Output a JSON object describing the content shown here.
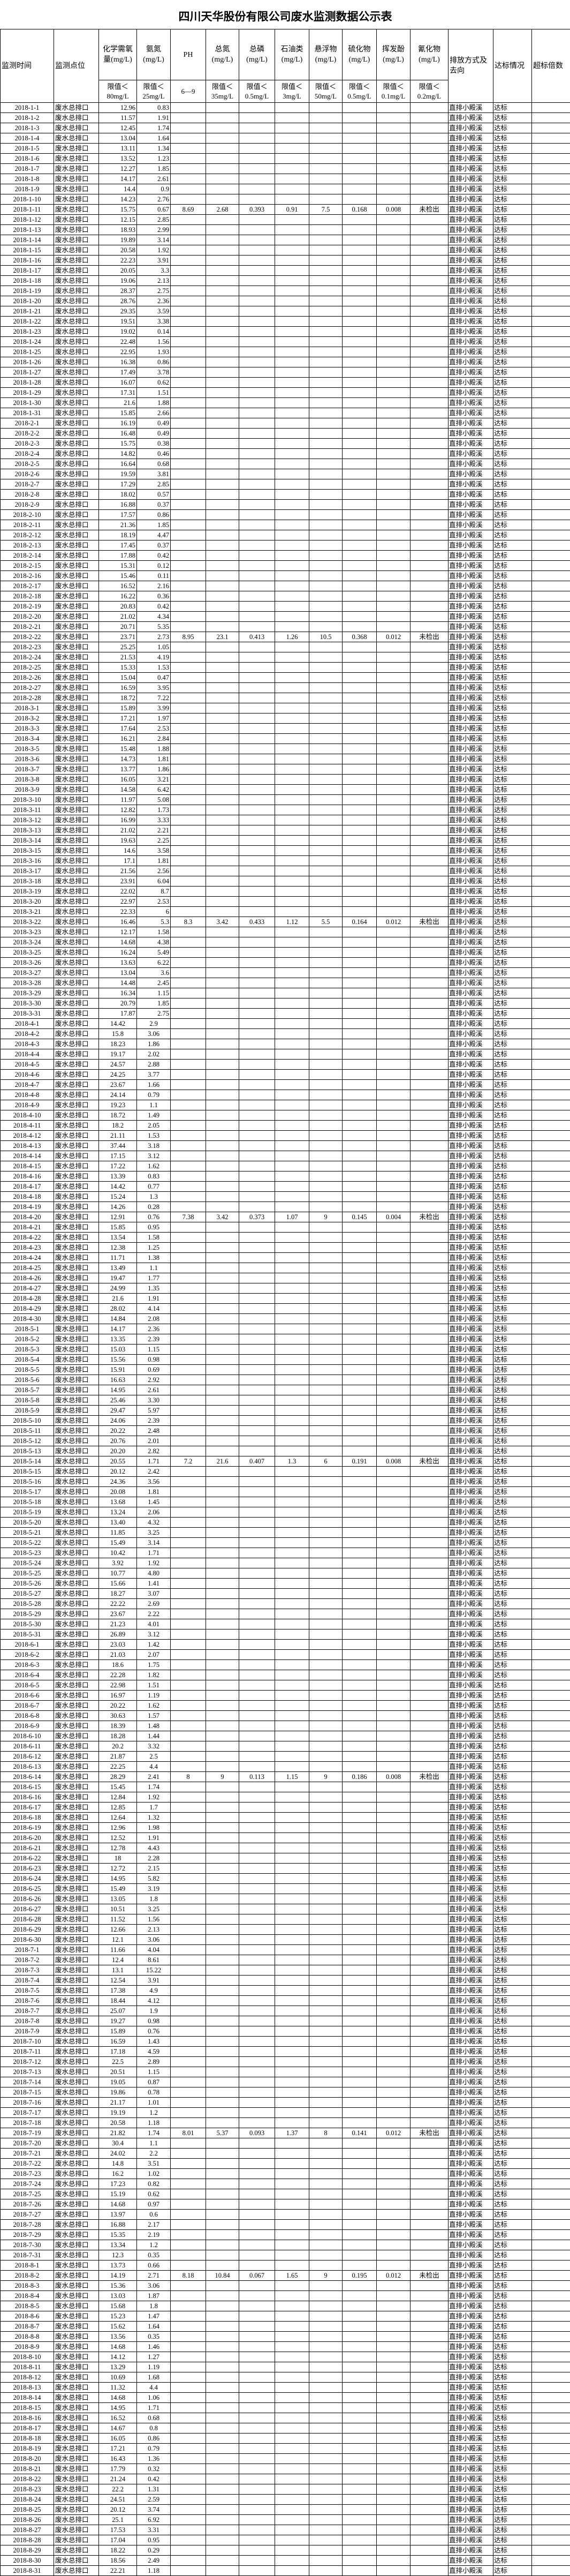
{
  "title": "四川天华股份有限公司废水监测数据公示表",
  "headers": {
    "time": "监测时间",
    "point": "监测点位",
    "cod": "化学需氧量(mg/L)",
    "nh3n": "氨氮(mg/L)",
    "ph": "PH",
    "tn": "总氮(mg/L)",
    "tp": "总磷(mg/L)",
    "oil": "石油类(mg/L)",
    "ss": "悬浮物(mg/L)",
    "sulfide": "硫化物(mg/L)",
    "phenol": "挥发酚(mg/L)",
    "cyanide": "氰化物(mg/L)",
    "discharge": "排放方式及去向",
    "status": "达标情况",
    "exceed": "超标倍数"
  },
  "limits": {
    "cod": "限值＜80mg/L",
    "nh3n": "限值＜25mg/L",
    "ph": "6—9",
    "tn": "限值＜35mg/L",
    "tp": "限值＜0.5mg/L",
    "oil": "限值＜3mg/L",
    "ss": "限值＜50mg/L",
    "sulfide": "限值＜0.5mg/L",
    "phenol": "限值＜0.1mg/L",
    "cyanide": "限值＜0.2mg/L"
  },
  "defaults": {
    "point": "废水总排口",
    "discharge": "直排小殿溪",
    "status": "达标"
  },
  "rows": [
    [
      "2018-1-1",
      "12.96",
      "0.83"
    ],
    [
      "2018-1-2",
      "11.57",
      "1.91"
    ],
    [
      "2018-1-3",
      "12.45",
      "1.74"
    ],
    [
      "2018-1-4",
      "13.04",
      "1.64"
    ],
    [
      "2018-1-5",
      "13.11",
      "1.34"
    ],
    [
      "2018-1-6",
      "13.52",
      "1.23"
    ],
    [
      "2018-1-7",
      "12.27",
      "1.85"
    ],
    [
      "2018-1-8",
      "14.17",
      "2.61"
    ],
    [
      "2018-1-9",
      "14.4",
      "0.9"
    ],
    [
      "2018-1-10",
      "14.23",
      "2.76"
    ],
    [
      "2018-1-11",
      "15.75",
      "0.67",
      "8.69",
      "2.68",
      "0.393",
      "0.91",
      "7.5",
      "0.168",
      "0.008",
      "未检出"
    ],
    [
      "2018-1-12",
      "12.15",
      "2.85"
    ],
    [
      "2018-1-13",
      "18.93",
      "2.99"
    ],
    [
      "2018-1-14",
      "19.89",
      "3.14"
    ],
    [
      "2018-1-15",
      "20.58",
      "1.92"
    ],
    [
      "2018-1-16",
      "22.23",
      "3.91"
    ],
    [
      "2018-1-17",
      "20.05",
      "3.3"
    ],
    [
      "2018-1-18",
      "19.06",
      "2.13"
    ],
    [
      "2018-1-19",
      "28.37",
      "2.75"
    ],
    [
      "2018-1-20",
      "28.76",
      "2.36"
    ],
    [
      "2018-1-21",
      "29.35",
      "3.59"
    ],
    [
      "2018-1-22",
      "19.51",
      "3.38"
    ],
    [
      "2018-1-23",
      "19.02",
      "0.14"
    ],
    [
      "2018-1-24",
      "22.48",
      "1.56"
    ],
    [
      "2018-1-25",
      "22.95",
      "1.93"
    ],
    [
      "2018-1-26",
      "16.38",
      "0.86"
    ],
    [
      "2018-1-27",
      "17.49",
      "3.78"
    ],
    [
      "2018-1-28",
      "16.07",
      "0.62"
    ],
    [
      "2018-1-29",
      "17.31",
      "1.51"
    ],
    [
      "2018-1-30",
      "21.6",
      "1.88"
    ],
    [
      "2018-1-31",
      "15.85",
      "2.66"
    ],
    [
      "2018-2-1",
      "16.19",
      "0.49"
    ],
    [
      "2018-2-2",
      "16.48",
      "0.49"
    ],
    [
      "2018-2-3",
      "15.75",
      "0.38"
    ],
    [
      "2018-2-4",
      "14.82",
      "0.46"
    ],
    [
      "2018-2-5",
      "16.64",
      "0.68"
    ],
    [
      "2018-2-6",
      "19.59",
      "3.81"
    ],
    [
      "2018-2-7",
      "17.29",
      "2.85"
    ],
    [
      "2018-2-8",
      "18.02",
      "0.57"
    ],
    [
      "2018-2-9",
      "16.88",
      "0.37"
    ],
    [
      "2018-2-10",
      "17.57",
      "0.86"
    ],
    [
      "2018-2-11",
      "21.36",
      "1.85"
    ],
    [
      "2018-2-12",
      "18.19",
      "4.47"
    ],
    [
      "2018-2-13",
      "17.45",
      "0.37"
    ],
    [
      "2018-2-14",
      "17.88",
      "0.42"
    ],
    [
      "2018-2-15",
      "15.31",
      "0.12"
    ],
    [
      "2018-2-16",
      "15.46",
      "0.11"
    ],
    [
      "2018-2-17",
      "16.52",
      "2.16"
    ],
    [
      "2018-2-18",
      "16.22",
      "0.36"
    ],
    [
      "2018-2-19",
      "20.83",
      "0.42"
    ],
    [
      "2018-2-20",
      "21.02",
      "4.34"
    ],
    [
      "2018-2-21",
      "20.71",
      "5.35"
    ],
    [
      "2018-2-22",
      "23.71",
      "2.73",
      "8.95",
      "23.1",
      "0.413",
      "1.26",
      "10.5",
      "0.368",
      "0.012",
      "未检出"
    ],
    [
      "2018-2-23",
      "25.25",
      "1.05"
    ],
    [
      "2018-2-24",
      "21.53",
      "4.19"
    ],
    [
      "2018-2-25",
      "15.33",
      "1.53"
    ],
    [
      "2018-2-26",
      "15.04",
      "0.47"
    ],
    [
      "2018-2-27",
      "16.59",
      "3.95"
    ],
    [
      "2018-2-28",
      "18.72",
      "7.22"
    ],
    [
      "2018-3-1",
      "15.89",
      "3.99"
    ],
    [
      "2018-3-2",
      "17.21",
      "1.97"
    ],
    [
      "2018-3-3",
      "17.64",
      "2.53"
    ],
    [
      "2018-3-4",
      "16.21",
      "2.84"
    ],
    [
      "2018-3-5",
      "15.48",
      "1.88"
    ],
    [
      "2018-3-6",
      "14.73",
      "1.81"
    ],
    [
      "2018-3-7",
      "13.77",
      "1.86"
    ],
    [
      "2018-3-8",
      "16.05",
      "3.21"
    ],
    [
      "2018-3-9",
      "14.58",
      "6.42"
    ],
    [
      "2018-3-10",
      "11.97",
      "5.08"
    ],
    [
      "2018-3-11",
      "12.82",
      "1.73"
    ],
    [
      "2018-3-12",
      "16.99",
      "3.33"
    ],
    [
      "2018-3-13",
      "21.02",
      "2.21"
    ],
    [
      "2018-3-14",
      "19.63",
      "2.25"
    ],
    [
      "2018-3-15",
      "14.6",
      "3.58"
    ],
    [
      "2018-3-16",
      "17.1",
      "1.81"
    ],
    [
      "2018-3-17",
      "21.56",
      "2.56"
    ],
    [
      "2018-3-18",
      "23.91",
      "6.04"
    ],
    [
      "2018-3-19",
      "22.02",
      "8.7"
    ],
    [
      "2018-3-20",
      "22.97",
      "2.53"
    ],
    [
      "2018-3-21",
      "22.33",
      "6"
    ],
    [
      "2018-3-22",
      "16.46",
      "5.3",
      "8.3",
      "3.42",
      "0.433",
      "1.12",
      "5.5",
      "0.164",
      "0.012",
      "未检出"
    ],
    [
      "2018-3-23",
      "12.17",
      "1.58"
    ],
    [
      "2018-3-24",
      "14.68",
      "4.38"
    ],
    [
      "2018-3-25",
      "16.24",
      "5.49"
    ],
    [
      "2018-3-26",
      "13.63",
      "6.22"
    ],
    [
      "2018-3-27",
      "13.04",
      "3.6"
    ],
    [
      "2018-3-28",
      "14.48",
      "2.45"
    ],
    [
      "2018-3-29",
      "16.34",
      "1.15"
    ],
    [
      "2018-3-30",
      "20.79",
      "1.85"
    ],
    [
      "2018-3-31",
      "17.87",
      "2.75"
    ],
    [
      "2018-4-1",
      "14.42",
      "2.9"
    ],
    [
      "2018-4-2",
      "15.8",
      "3.06"
    ],
    [
      "2018-4-3",
      "18.23",
      "1.86"
    ],
    [
      "2018-4-4",
      "19.17",
      "2.02"
    ],
    [
      "2018-4-5",
      "24.57",
      "2.88"
    ],
    [
      "2018-4-6",
      "24.25",
      "3.77"
    ],
    [
      "2018-4-7",
      "23.67",
      "1.66"
    ],
    [
      "2018-4-8",
      "24.14",
      "0.79"
    ],
    [
      "2018-4-9",
      "19.23",
      "1.1"
    ],
    [
      "2018-4-10",
      "18.72",
      "1.49"
    ],
    [
      "2018-4-11",
      "18.2",
      "2.05"
    ],
    [
      "2018-4-12",
      "21.11",
      "1.53"
    ],
    [
      "2018-4-13",
      "37.44",
      "3.18"
    ],
    [
      "2018-4-14",
      "17.15",
      "3.12"
    ],
    [
      "2018-4-15",
      "17.22",
      "1.62"
    ],
    [
      "2018-4-16",
      "13.39",
      "0.83"
    ],
    [
      "2018-4-17",
      "14.42",
      "0.77"
    ],
    [
      "2018-4-18",
      "15.24",
      "1.3"
    ],
    [
      "2018-4-19",
      "14.26",
      "0.28"
    ],
    [
      "2018-4-20",
      "12.91",
      "0.76",
      "7.38",
      "3.42",
      "0.373",
      "1.07",
      "9",
      "0.145",
      "0.004",
      "未检出"
    ],
    [
      "2018-4-21",
      "15.85",
      "0.95"
    ],
    [
      "2018-4-22",
      "13.54",
      "1.58"
    ],
    [
      "2018-4-23",
      "12.38",
      "1.25"
    ],
    [
      "2018-4-24",
      "11.71",
      "1.38"
    ],
    [
      "2018-4-25",
      "13.49",
      "1.1"
    ],
    [
      "2018-4-26",
      "19.47",
      "1.77"
    ],
    [
      "2018-4-27",
      "24.99",
      "1.35"
    ],
    [
      "2018-4-28",
      "21.6",
      "1.91"
    ],
    [
      "2018-4-29",
      "28.02",
      "4.14"
    ],
    [
      "2018-4-30",
      "14.84",
      "2.08"
    ],
    [
      "2018-5-1",
      "14.17",
      "2.36"
    ],
    [
      "2018-5-2",
      "13.35",
      "2.39"
    ],
    [
      "2018-5-3",
      "15.03",
      "1.15"
    ],
    [
      "2018-5-4",
      "15.56",
      "0.98"
    ],
    [
      "2018-5-5",
      "15.91",
      "0.69"
    ],
    [
      "2018-5-6",
      "16.63",
      "2.92"
    ],
    [
      "2018-5-7",
      "14.95",
      "2.61"
    ],
    [
      "2018-5-8",
      "25.46",
      "3.30"
    ],
    [
      "2018-5-9",
      "29.47",
      "5.97"
    ],
    [
      "2018-5-10",
      "24.06",
      "2.39"
    ],
    [
      "2018-5-11",
      "20.22",
      "2.48"
    ],
    [
      "2018-5-12",
      "20.76",
      "2.01"
    ],
    [
      "2018-5-13",
      "20.20",
      "2.82"
    ],
    [
      "2018-5-14",
      "20.55",
      "1.71",
      "7.2",
      "21.6",
      "0.407",
      "1.3",
      "6",
      "0.191",
      "0.008",
      "未检出"
    ],
    [
      "2018-5-15",
      "20.12",
      "2.42"
    ],
    [
      "2018-5-16",
      "24.36",
      "3.56"
    ],
    [
      "2018-5-17",
      "20.08",
      "1.81"
    ],
    [
      "2018-5-18",
      "13.68",
      "1.45"
    ],
    [
      "2018-5-19",
      "13.24",
      "2.06"
    ],
    [
      "2018-5-20",
      "13.40",
      "4.32"
    ],
    [
      "2018-5-21",
      "11.85",
      "3.25"
    ],
    [
      "2018-5-22",
      "15.49",
      "3.14"
    ],
    [
      "2018-5-23",
      "10.42",
      "1.71"
    ],
    [
      "2018-5-24",
      "3.92",
      "1.92"
    ],
    [
      "2018-5-25",
      "10.77",
      "4.80"
    ],
    [
      "2018-5-26",
      "15.66",
      "1.41"
    ],
    [
      "2018-5-27",
      "18.27",
      "3.07"
    ],
    [
      "2018-5-28",
      "22.22",
      "2.69"
    ],
    [
      "2018-5-29",
      "23.67",
      "2.22"
    ],
    [
      "2018-5-30",
      "21.23",
      "4.01"
    ],
    [
      "2018-5-31",
      "26.89",
      "3.12"
    ],
    [
      "2018-6-1",
      "23.03",
      "1.42"
    ],
    [
      "2018-6-2",
      "21.03",
      "2.07"
    ],
    [
      "2018-6-3",
      "18.6",
      "1.75"
    ],
    [
      "2018-6-4",
      "22.28",
      "1.82"
    ],
    [
      "2018-6-5",
      "22.98",
      "1.51"
    ],
    [
      "2018-6-6",
      "16.97",
      "1.19"
    ],
    [
      "2018-6-7",
      "20.22",
      "1.62"
    ],
    [
      "2018-6-8",
      "30.63",
      "1.57"
    ],
    [
      "2018-6-9",
      "18.39",
      "1.48"
    ],
    [
      "2018-6-10",
      "18.28",
      "1.44"
    ],
    [
      "2018-6-11",
      "20.2",
      "3.32"
    ],
    [
      "2018-6-12",
      "21.87",
      "2.5"
    ],
    [
      "2018-6-13",
      "22.25",
      "4.4"
    ],
    [
      "2018-6-14",
      "28.29",
      "2.41",
      "8",
      "9",
      "0.113",
      "1.15",
      "9",
      "0.186",
      "0.008",
      "未检出"
    ],
    [
      "2018-6-15",
      "15.45",
      "1.74"
    ],
    [
      "2018-6-16",
      "12.84",
      "1.92"
    ],
    [
      "2018-6-17",
      "12.85",
      "1.7"
    ],
    [
      "2018-6-18",
      "12.64",
      "1.32"
    ],
    [
      "2018-6-19",
      "12.96",
      "1.98"
    ],
    [
      "2018-6-20",
      "12.52",
      "1.91"
    ],
    [
      "2018-6-21",
      "12.78",
      "4.43"
    ],
    [
      "2018-6-22",
      "18",
      "2.28"
    ],
    [
      "2018-6-23",
      "12.72",
      "2.15"
    ],
    [
      "2018-6-24",
      "14.95",
      "5.82"
    ],
    [
      "2018-6-25",
      "15.49",
      "3.19"
    ],
    [
      "2018-6-26",
      "13.05",
      "1.8"
    ],
    [
      "2018-6-27",
      "10.51",
      "3.25"
    ],
    [
      "2018-6-28",
      "11.52",
      "1.56"
    ],
    [
      "2018-6-29",
      "12.66",
      "2.13"
    ],
    [
      "2018-6-30",
      "12.1",
      "3.06"
    ],
    [
      "2018-7-1",
      "11.66",
      "4.04"
    ],
    [
      "2018-7-2",
      "12.4",
      "8.61"
    ],
    [
      "2018-7-3",
      "13.1",
      "15.22"
    ],
    [
      "2018-7-4",
      "12.54",
      "3.91"
    ],
    [
      "2018-7-5",
      "17.38",
      "4.9"
    ],
    [
      "2018-7-6",
      "18.44",
      "4.12"
    ],
    [
      "2018-7-7",
      "25.07",
      "1.9"
    ],
    [
      "2018-7-8",
      "19.27",
      "0.98"
    ],
    [
      "2018-7-9",
      "15.89",
      "0.76"
    ],
    [
      "2018-7-10",
      "16.59",
      "1.43"
    ],
    [
      "2018-7-11",
      "17.18",
      "4.59"
    ],
    [
      "2018-7-12",
      "22.5",
      "2.89"
    ],
    [
      "2018-7-13",
      "20.51",
      "1.15"
    ],
    [
      "2018-7-14",
      "19.05",
      "0.87"
    ],
    [
      "2018-7-15",
      "19.86",
      "0.78"
    ],
    [
      "2018-7-16",
      "21.17",
      "1.01"
    ],
    [
      "2018-7-17",
      "19.19",
      "1.2"
    ],
    [
      "2018-7-18",
      "20.58",
      "1.18"
    ],
    [
      "2018-7-19",
      "21.82",
      "1.74",
      "8.01",
      "5.37",
      "0.093",
      "1.37",
      "8",
      "0.141",
      "0.012",
      "未检出"
    ],
    [
      "2018-7-20",
      "30.4",
      "1.1"
    ],
    [
      "2018-7-21",
      "24.02",
      "2.2"
    ],
    [
      "2018-7-22",
      "14.8",
      "3.51"
    ],
    [
      "2018-7-23",
      "16.2",
      "1.02"
    ],
    [
      "2018-7-24",
      "17.23",
      "0.82"
    ],
    [
      "2018-7-25",
      "15.19",
      "0.62"
    ],
    [
      "2018-7-26",
      "14.68",
      "0.97"
    ],
    [
      "2018-7-27",
      "13.97",
      "0.6"
    ],
    [
      "2018-7-28",
      "16.88",
      "2.17"
    ],
    [
      "2018-7-29",
      "15.35",
      "2.19"
    ],
    [
      "2018-7-30",
      "13.34",
      "1.2"
    ],
    [
      "2018-7-31",
      "12.3",
      "0.35"
    ],
    [
      "2018-8-1",
      "13.73",
      "0.66"
    ],
    [
      "2018-8-2",
      "14.19",
      "2.71",
      "8.18",
      "10.84",
      "0.067",
      "1.65",
      "9",
      "0.195",
      "0.012",
      "未检出"
    ],
    [
      "2018-8-3",
      "15.36",
      "3.06"
    ],
    [
      "2018-8-4",
      "13.03",
      "1.87"
    ],
    [
      "2018-8-5",
      "15.68",
      "1.8"
    ],
    [
      "2018-8-6",
      "15.23",
      "1.47"
    ],
    [
      "2018-8-7",
      "15.62",
      "1.64"
    ],
    [
      "2018-8-8",
      "13.56",
      "0.35"
    ],
    [
      "2018-8-9",
      "14.68",
      "1.46"
    ],
    [
      "2018-8-10",
      "14.12",
      "1.27"
    ],
    [
      "2018-8-11",
      "13.29",
      "1.19"
    ],
    [
      "2018-8-12",
      "10.69",
      "1.68"
    ],
    [
      "2018-8-13",
      "11.32",
      "4.4"
    ],
    [
      "2018-8-14",
      "14.68",
      "1.06"
    ],
    [
      "2018-8-15",
      "14.95",
      "1.71"
    ],
    [
      "2018-8-16",
      "16.52",
      "0.68"
    ],
    [
      "2018-8-17",
      "14.67",
      "0.8"
    ],
    [
      "2018-8-18",
      "16.05",
      "0.86"
    ],
    [
      "2018-8-19",
      "17.21",
      "0.79"
    ],
    [
      "2018-8-20",
      "16.43",
      "1.36"
    ],
    [
      "2018-8-21",
      "17.79",
      "0.32"
    ],
    [
      "2018-8-22",
      "21.24",
      "0.42"
    ],
    [
      "2018-8-23",
      "22.2",
      "1.31"
    ],
    [
      "2018-8-24",
      "24.51",
      "2.59"
    ],
    [
      "2018-8-25",
      "20.12",
      "3.74"
    ],
    [
      "2018-8-26",
      "25.1",
      "6.92"
    ],
    [
      "2018-8-27",
      "17.53",
      "3.31"
    ],
    [
      "2018-8-28",
      "17.04",
      "0.95"
    ],
    [
      "2018-8-29",
      "18.22",
      "0.29"
    ],
    [
      "2018-8-30",
      "18.56",
      "2.49"
    ],
    [
      "2018-8-31",
      "22.21",
      "1.18"
    ]
  ]
}
